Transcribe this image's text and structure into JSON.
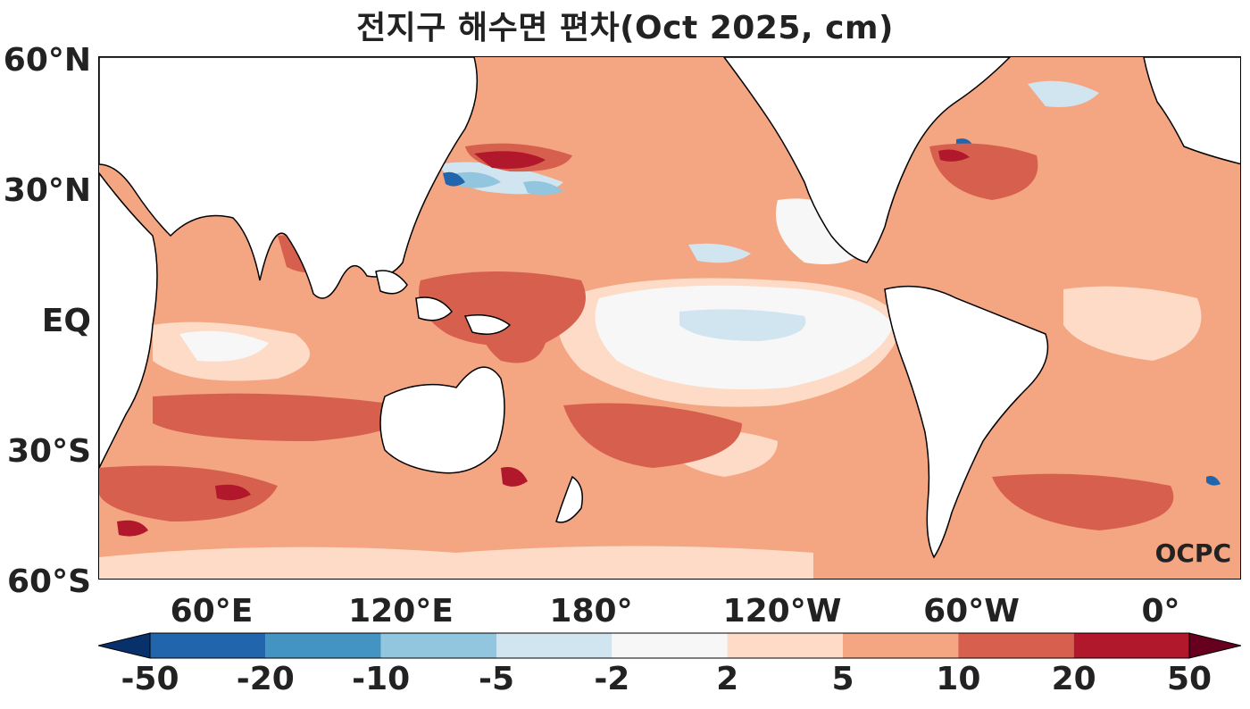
{
  "title": "전지구 해수면 편차(Oct 2025, cm)",
  "lat_labels": [
    "60°N",
    "30°N",
    "EQ",
    "30°S",
    "60°S"
  ],
  "lon_labels": [
    "60°E",
    "120°E",
    "180°",
    "120°W",
    "60°W",
    "0°"
  ],
  "watermark": "OCPC",
  "colorbar": {
    "ticks": [
      "-50",
      "-20",
      "-10",
      "-5",
      "-2",
      "2",
      "5",
      "10",
      "20",
      "50"
    ],
    "colors": [
      "#08306b",
      "#2166ac",
      "#4393c3",
      "#92c5de",
      "#d1e5f0",
      "#f7f7f7",
      "#fddbc7",
      "#f4a582",
      "#d6604d",
      "#b2182b",
      "#67001f"
    ]
  }
}
